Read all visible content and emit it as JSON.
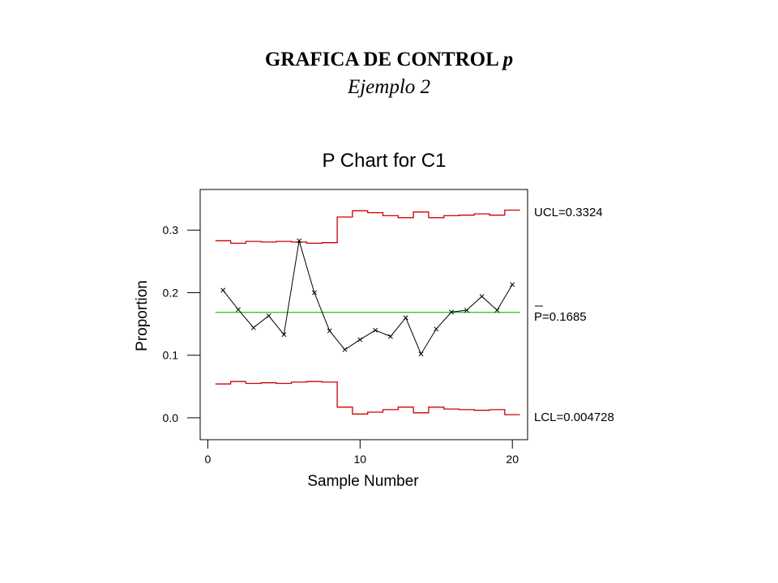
{
  "slide": {
    "title": "GRAFICA DE CONTROL",
    "title_variable": "p",
    "subtitle": "Ejemplo 2"
  },
  "chart_data": {
    "type": "line",
    "title": "P Chart for C1",
    "xlabel": "Sample Number",
    "ylabel": "Proportion",
    "xlim": [
      -0.5,
      21
    ],
    "ylim": [
      -0.035,
      0.365
    ],
    "xticks": [
      0,
      10,
      20
    ],
    "xtick_labels": [
      "0",
      "10",
      "20"
    ],
    "yticks": [
      0.0,
      0.1,
      0.2,
      0.3
    ],
    "ytick_labels": [
      "0.0",
      "0.1",
      "0.2",
      "0.3"
    ],
    "x": [
      1,
      2,
      3,
      4,
      5,
      6,
      7,
      8,
      9,
      10,
      11,
      12,
      13,
      14,
      15,
      16,
      17,
      18,
      19,
      20
    ],
    "proportion": [
      0.204,
      0.173,
      0.144,
      0.163,
      0.133,
      0.283,
      0.2,
      0.139,
      0.109,
      0.125,
      0.14,
      0.13,
      0.16,
      0.102,
      0.142,
      0.169,
      0.172,
      0.194,
      0.172,
      0.213
    ],
    "ucl": [
      0.283,
      0.279,
      0.282,
      0.281,
      0.282,
      0.281,
      0.279,
      0.28,
      0.321,
      0.331,
      0.328,
      0.323,
      0.32,
      0.329,
      0.32,
      0.323,
      0.324,
      0.326,
      0.324,
      0.332
    ],
    "lcl": [
      0.054,
      0.058,
      0.055,
      0.056,
      0.055,
      0.057,
      0.058,
      0.057,
      0.017,
      0.006,
      0.009,
      0.013,
      0.017,
      0.008,
      0.017,
      0.014,
      0.013,
      0.012,
      0.013,
      0.005
    ],
    "center": 0.1685,
    "labels": {
      "ucl": "UCL=0.3324",
      "center_prefix": "P",
      "center_value": "=0.1685",
      "lcl": "LCL=0.004728"
    },
    "colors": {
      "limits": "#cc0000",
      "center": "#00bb00",
      "data": "#000000"
    }
  }
}
